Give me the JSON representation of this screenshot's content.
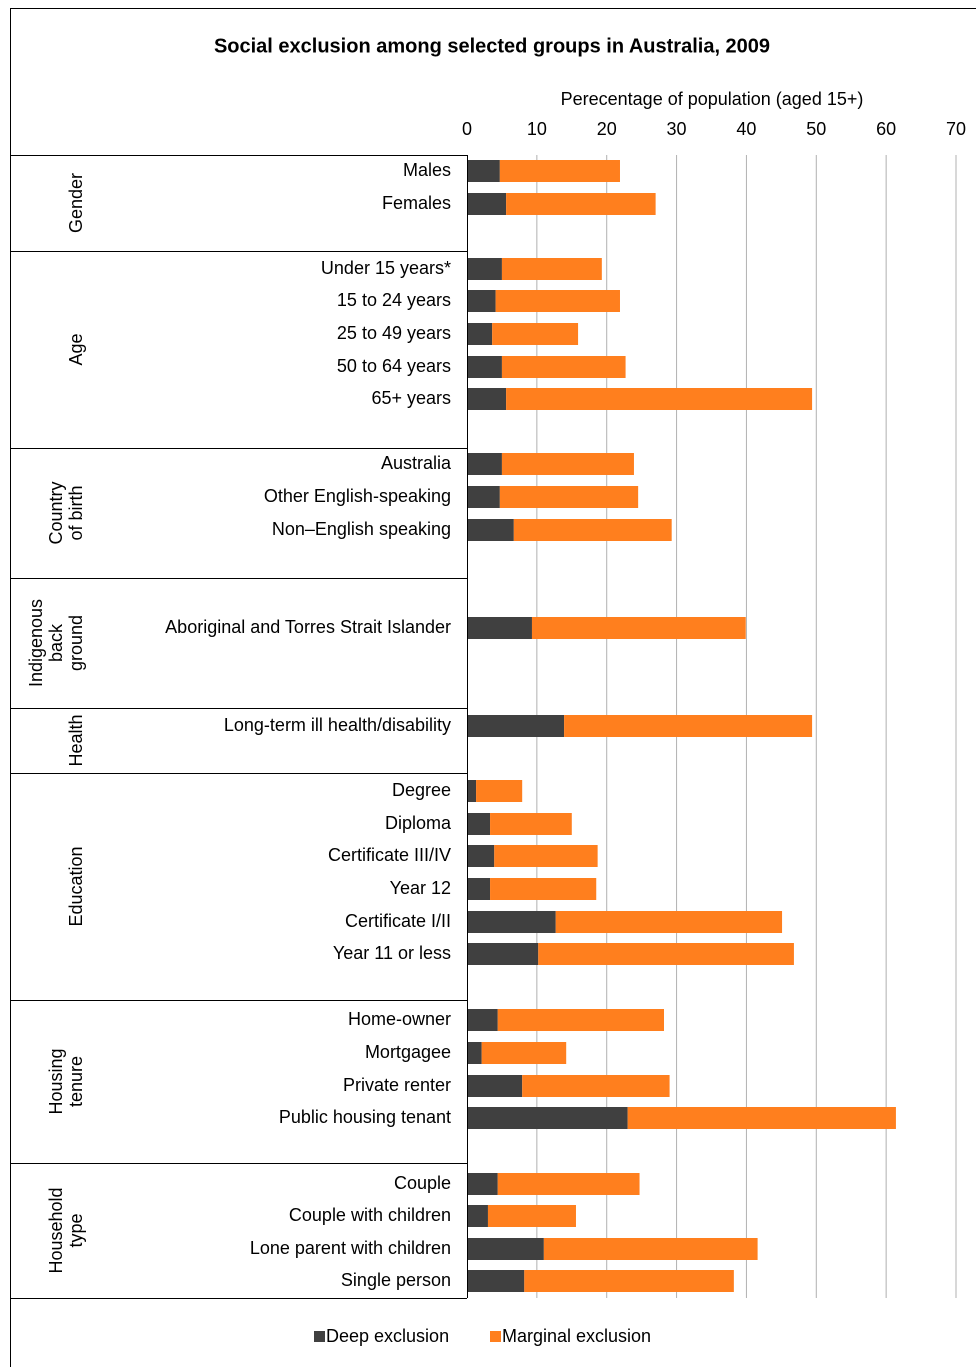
{
  "chart_data": {
    "type": "stacked-barh",
    "title": "Social exclusion among selected groups in Australia, 2009",
    "x_label": "Perecentage of population (aged  15+)",
    "xlim": [
      0,
      70
    ],
    "xticks": [
      0,
      10,
      20,
      30,
      40,
      50,
      60,
      70
    ],
    "grid": true,
    "legend": "bottom",
    "groups": [
      {
        "label": [
          "Gender"
        ],
        "categories": [
          "Males",
          "Females"
        ]
      },
      {
        "label": [
          "Age"
        ],
        "categories": [
          "Under 15 years*",
          "15 to 24 years",
          "25 to 49 years",
          "50 to 64 years",
          "65+ years"
        ]
      },
      {
        "label": [
          "Country",
          "of birth"
        ],
        "categories": [
          "Australia",
          "Other English-speaking",
          "Non–English speaking"
        ]
      },
      {
        "label": [
          "Indigenous",
          "back",
          "ground"
        ],
        "categories": [
          "Aboriginal and Torres Strait Islander"
        ]
      },
      {
        "label": [
          "Health"
        ],
        "categories": [
          "Long-term ill health/disability"
        ]
      },
      {
        "label": [
          "Education"
        ],
        "categories": [
          "Degree",
          "Diploma",
          "Certificate III/IV",
          "Year 12",
          "Certificate I/II",
          "Year 11 or less"
        ]
      },
      {
        "label": [
          "Housing",
          "tenure"
        ],
        "categories": [
          "Home-owner",
          "Mortgagee",
          "Private renter",
          "Public housing tenant"
        ]
      },
      {
        "label": [
          "Household",
          "type"
        ],
        "categories": [
          "Couple",
          "Couple with children",
          "Lone parent with children",
          "Single person"
        ]
      }
    ],
    "series": [
      {
        "name": "Deep exclusion",
        "color": "#404040",
        "values": [
          4.7,
          5.6,
          5.0,
          4.1,
          3.6,
          5.0,
          5.6,
          5.0,
          4.7,
          6.7,
          9.3,
          13.9,
          1.3,
          3.3,
          3.9,
          3.3,
          12.7,
          10.2,
          4.4,
          2.1,
          7.9,
          23.0,
          4.4,
          3.0,
          11.0,
          8.2
        ]
      },
      {
        "name": "Marginal exclusion",
        "color": "#ff7f1e",
        "values": [
          17.2,
          21.4,
          14.3,
          17.8,
          12.3,
          17.7,
          43.8,
          18.9,
          19.8,
          22.6,
          30.6,
          35.5,
          6.6,
          11.7,
          14.8,
          15.2,
          32.4,
          36.6,
          23.8,
          12.1,
          21.1,
          38.4,
          20.3,
          12.6,
          30.6,
          30.0
        ]
      }
    ]
  }
}
